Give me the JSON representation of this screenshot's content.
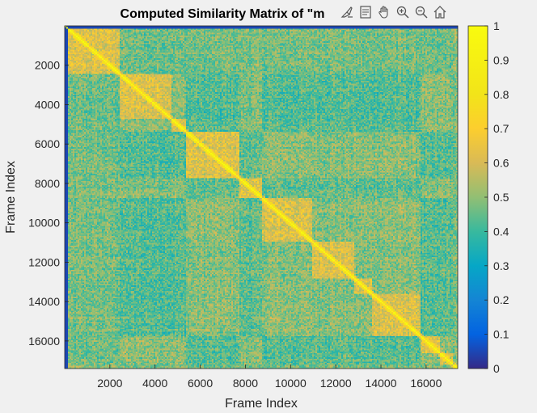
{
  "chart_data": {
    "type": "heatmap",
    "title": "Computed Similarity Matrix of \"m",
    "xlabel": "Frame Index",
    "ylabel": "Frame Index",
    "x_ticks": [
      2000,
      4000,
      6000,
      8000,
      10000,
      12000,
      14000,
      16000
    ],
    "y_ticks": [
      2000,
      4000,
      6000,
      8000,
      10000,
      12000,
      14000,
      16000
    ],
    "x_tick_labels": [
      "2000",
      "4000",
      "6000",
      "8000",
      "10000",
      "12000",
      "14000",
      "16000"
    ],
    "y_tick_labels": [
      "2000",
      "4000",
      "6000",
      "8000",
      "10000",
      "12000",
      "14000",
      "16000"
    ],
    "xlim": [
      1,
      17400
    ],
    "ylim": [
      1,
      17400
    ],
    "y_direction": "reverse",
    "colormap": "parula",
    "clim": [
      0,
      1
    ],
    "colorbar_ticks": [
      0,
      0.1,
      0.2,
      0.3,
      0.4,
      0.5,
      0.6,
      0.7,
      0.8,
      0.9,
      1
    ],
    "colorbar_tick_labels": [
      "0",
      "0.1",
      "0.2",
      "0.3",
      "0.4",
      "0.5",
      "0.6",
      "0.7",
      "0.8",
      "0.9",
      "1"
    ],
    "values_summary": "Symmetric frame-by-frame similarity matrix; diagonal = 1 (yellow); off-diagonal values mostly between 0.4 and 0.8 with block structure; first ~100 frames near 0 (dark blue)."
  },
  "toolbar": {
    "icons": [
      "brush-icon",
      "datatip-icon",
      "pan-icon",
      "zoom-in-icon",
      "zoom-out-icon",
      "home-icon"
    ]
  },
  "colors": {
    "figure_bg": "#f0f0f0",
    "axes_text": "#262626",
    "axes_line": "#262626"
  }
}
